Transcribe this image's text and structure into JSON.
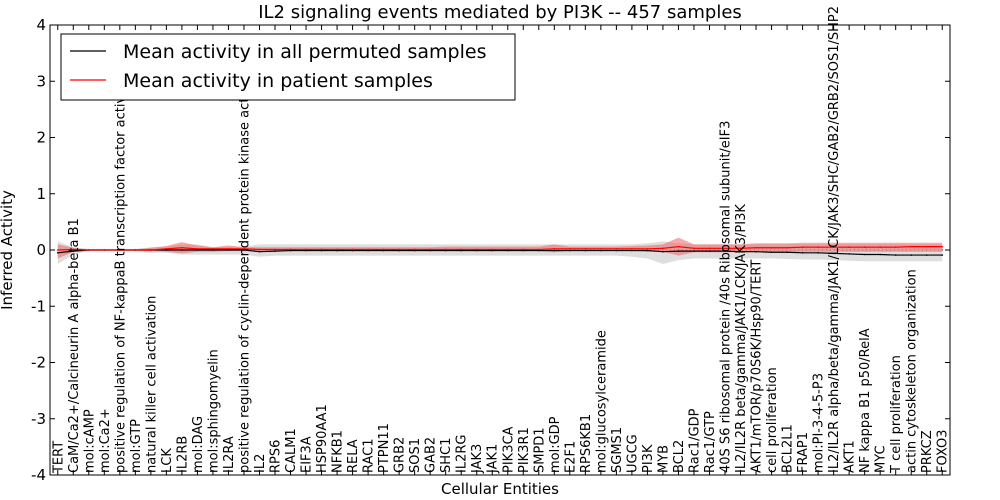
{
  "chart_data": {
    "type": "line",
    "title": "IL2 signaling events mediated by PI3K -- 457 samples",
    "xlabel": "Cellular Entities",
    "ylabel": "Inferred Activity",
    "ylim": [
      -4,
      4
    ],
    "yticks": [
      -4,
      -3,
      -2,
      -1,
      0,
      1,
      2,
      3,
      4
    ],
    "legend": {
      "location": "top-left",
      "entries": [
        {
          "label": "Mean activity in all permuted samples",
          "color": "#000000"
        },
        {
          "label": "Mean activity in patient samples",
          "color": "#ff0000"
        }
      ]
    },
    "categories": [
      "TERT",
      "CaM/Ca2+/Calcineurin A alpha-beta B1",
      "mol:cAMP",
      "mol:Ca2+",
      "positive regulation of NF-kappaB transcription factor activity",
      "mol:GTP",
      "natural killer cell activation",
      "LCK",
      "IL2RB",
      "mol:DAG",
      "mol:sphingomyelin",
      "IL2RA",
      "positive regulation of cyclin-dependent protein kinase activity",
      "IL2",
      "RPS6",
      "CALM1",
      "EIF3A",
      "HSP90AA1",
      "NFKB1",
      "RELA",
      "RAC1",
      "PTPN11",
      "GRB2",
      "SOS1",
      "GAB2",
      "SHC1",
      "IL2RG",
      "JAK3",
      "JAK1",
      "PIK3CA",
      "PIK3R1",
      "SMPD1",
      "mol:GDP",
      "E2F1",
      "RPS6KB1",
      "mol:glucosylceramide",
      "SGMS1",
      "UGCG",
      "PI3K",
      "MYB",
      "BCL2",
      "Rac1/GDP",
      "Rac1/GTP",
      "40S S6 ribosomal protein /40s Ribosomal subunit/eIF3",
      "IL2/IL2R beta/gamma/JAK1/LCK/JAK3/PI3K",
      "AKT1/mTOR/p70S6K/Hsp90/TERT",
      "cell proliferation",
      "BCL2L1",
      "FRAP1",
      "mol:PI-3-4-5-P3",
      "IL2/IL2R alpha/beta/gamma/JAK1/LCK/JAK3/SHC/GAB2/GRB2/SOS1/SHP2",
      "AKT1",
      "NF kappa B1 p50/RelA",
      "MYC",
      "T cell proliferation",
      "actin cytoskeleton organization",
      "PRKCZ",
      "FOXO3"
    ],
    "series": [
      {
        "name": "Mean activity in all permuted samples",
        "color": "#000000",
        "values": [
          -0.05,
          -0.02,
          0,
          0,
          0,
          0,
          0,
          0,
          0,
          0,
          0,
          0,
          0,
          -0.03,
          -0.02,
          -0.01,
          -0.01,
          -0.01,
          -0.01,
          -0.01,
          -0.01,
          -0.01,
          -0.01,
          -0.01,
          -0.01,
          -0.01,
          -0.01,
          -0.01,
          -0.01,
          -0.01,
          -0.01,
          -0.01,
          -0.01,
          -0.01,
          -0.01,
          -0.01,
          -0.01,
          -0.01,
          -0.01,
          -0.03,
          -0.02,
          -0.02,
          -0.02,
          -0.02,
          -0.03,
          -0.03,
          -0.04,
          -0.04,
          -0.05,
          -0.05,
          -0.06,
          -0.07,
          -0.08,
          -0.08,
          -0.09,
          -0.09,
          -0.09,
          -0.09
        ],
        "band": {
          "lower": [
            -0.25,
            -0.08,
            -0.02,
            -0.02,
            -0.02,
            -0.02,
            -0.05,
            -0.05,
            -0.08,
            -0.08,
            -0.08,
            -0.08,
            -0.08,
            -0.12,
            -0.1,
            -0.1,
            -0.1,
            -0.1,
            -0.1,
            -0.1,
            -0.1,
            -0.1,
            -0.1,
            -0.1,
            -0.1,
            -0.1,
            -0.1,
            -0.1,
            -0.1,
            -0.1,
            -0.1,
            -0.1,
            -0.1,
            -0.1,
            -0.1,
            -0.1,
            -0.1,
            -0.12,
            -0.15,
            -0.25,
            -0.18,
            -0.15,
            -0.15,
            -0.15,
            -0.15,
            -0.15,
            -0.15,
            -0.16,
            -0.17,
            -0.17,
            -0.18,
            -0.19,
            -0.2,
            -0.2,
            -0.2,
            -0.2,
            -0.2,
            -0.2
          ],
          "upper": [
            0.15,
            0.05,
            0.02,
            0.02,
            0.02,
            0.02,
            0.05,
            0.06,
            0.1,
            0.1,
            0.05,
            0.06,
            0.06,
            0.1,
            0.1,
            0.1,
            0.1,
            0.1,
            0.1,
            0.1,
            0.1,
            0.1,
            0.1,
            0.1,
            0.1,
            0.1,
            0.1,
            0.1,
            0.1,
            0.1,
            0.1,
            0.1,
            0.1,
            0.1,
            0.1,
            0.1,
            0.1,
            0.1,
            0.12,
            0.15,
            0.12,
            0.1,
            0.1,
            0.1,
            0.1,
            0.1,
            0.1,
            0.1,
            0.1,
            0.1,
            0.1,
            0.1,
            0.1,
            0.1,
            0.1,
            0.1,
            0.1,
            0.1
          ]
        }
      },
      {
        "name": "Mean activity in patient samples",
        "color": "#ff0000",
        "values": [
          0.0,
          0.01,
          0,
          0,
          0,
          0,
          0,
          0.02,
          0.04,
          0.02,
          0.02,
          0.02,
          0.02,
          0.01,
          0.01,
          0.01,
          0.01,
          0.01,
          0.01,
          0.01,
          0.01,
          0.01,
          0.01,
          0.01,
          0.01,
          0.01,
          0.01,
          0.01,
          0.01,
          0.01,
          0.01,
          0.01,
          0.02,
          0.02,
          0.02,
          0.02,
          0.02,
          0.02,
          0.02,
          0.03,
          0.06,
          0.03,
          0.03,
          0.03,
          0.03,
          0.04,
          0.04,
          0.04,
          0.05,
          0.05,
          0.05,
          0.05,
          0.05,
          0.05,
          0.05,
          0.06,
          0.06,
          0.06
        ],
        "band": {
          "lower": [
            -0.15,
            -0.03,
            -0.01,
            -0.01,
            -0.01,
            -0.01,
            -0.02,
            -0.03,
            -0.06,
            -0.03,
            -0.03,
            -0.02,
            -0.02,
            -0.02,
            -0.02,
            -0.02,
            -0.02,
            -0.02,
            -0.02,
            -0.02,
            -0.02,
            -0.02,
            -0.02,
            -0.02,
            -0.02,
            -0.02,
            -0.02,
            -0.02,
            -0.02,
            -0.02,
            -0.02,
            -0.02,
            -0.04,
            -0.02,
            -0.02,
            -0.02,
            -0.02,
            -0.02,
            -0.03,
            -0.03,
            -0.1,
            -0.04,
            -0.04,
            -0.04,
            -0.04,
            -0.04,
            -0.04,
            -0.04,
            -0.03,
            -0.03,
            -0.03,
            -0.03,
            -0.03,
            -0.03,
            -0.03,
            -0.03,
            -0.03,
            -0.03
          ],
          "upper": [
            0.1,
            0.04,
            0.01,
            0.01,
            0.01,
            0.01,
            0.04,
            0.07,
            0.14,
            0.08,
            0.05,
            0.08,
            0.05,
            0.05,
            0.05,
            0.05,
            0.05,
            0.05,
            0.05,
            0.05,
            0.05,
            0.05,
            0.05,
            0.05,
            0.05,
            0.06,
            0.06,
            0.06,
            0.06,
            0.06,
            0.06,
            0.06,
            0.1,
            0.06,
            0.06,
            0.06,
            0.06,
            0.07,
            0.08,
            0.1,
            0.22,
            0.1,
            0.1,
            0.1,
            0.1,
            0.12,
            0.12,
            0.12,
            0.13,
            0.13,
            0.13,
            0.13,
            0.13,
            0.13,
            0.13,
            0.13,
            0.13,
            0.13
          ]
        }
      }
    ]
  }
}
